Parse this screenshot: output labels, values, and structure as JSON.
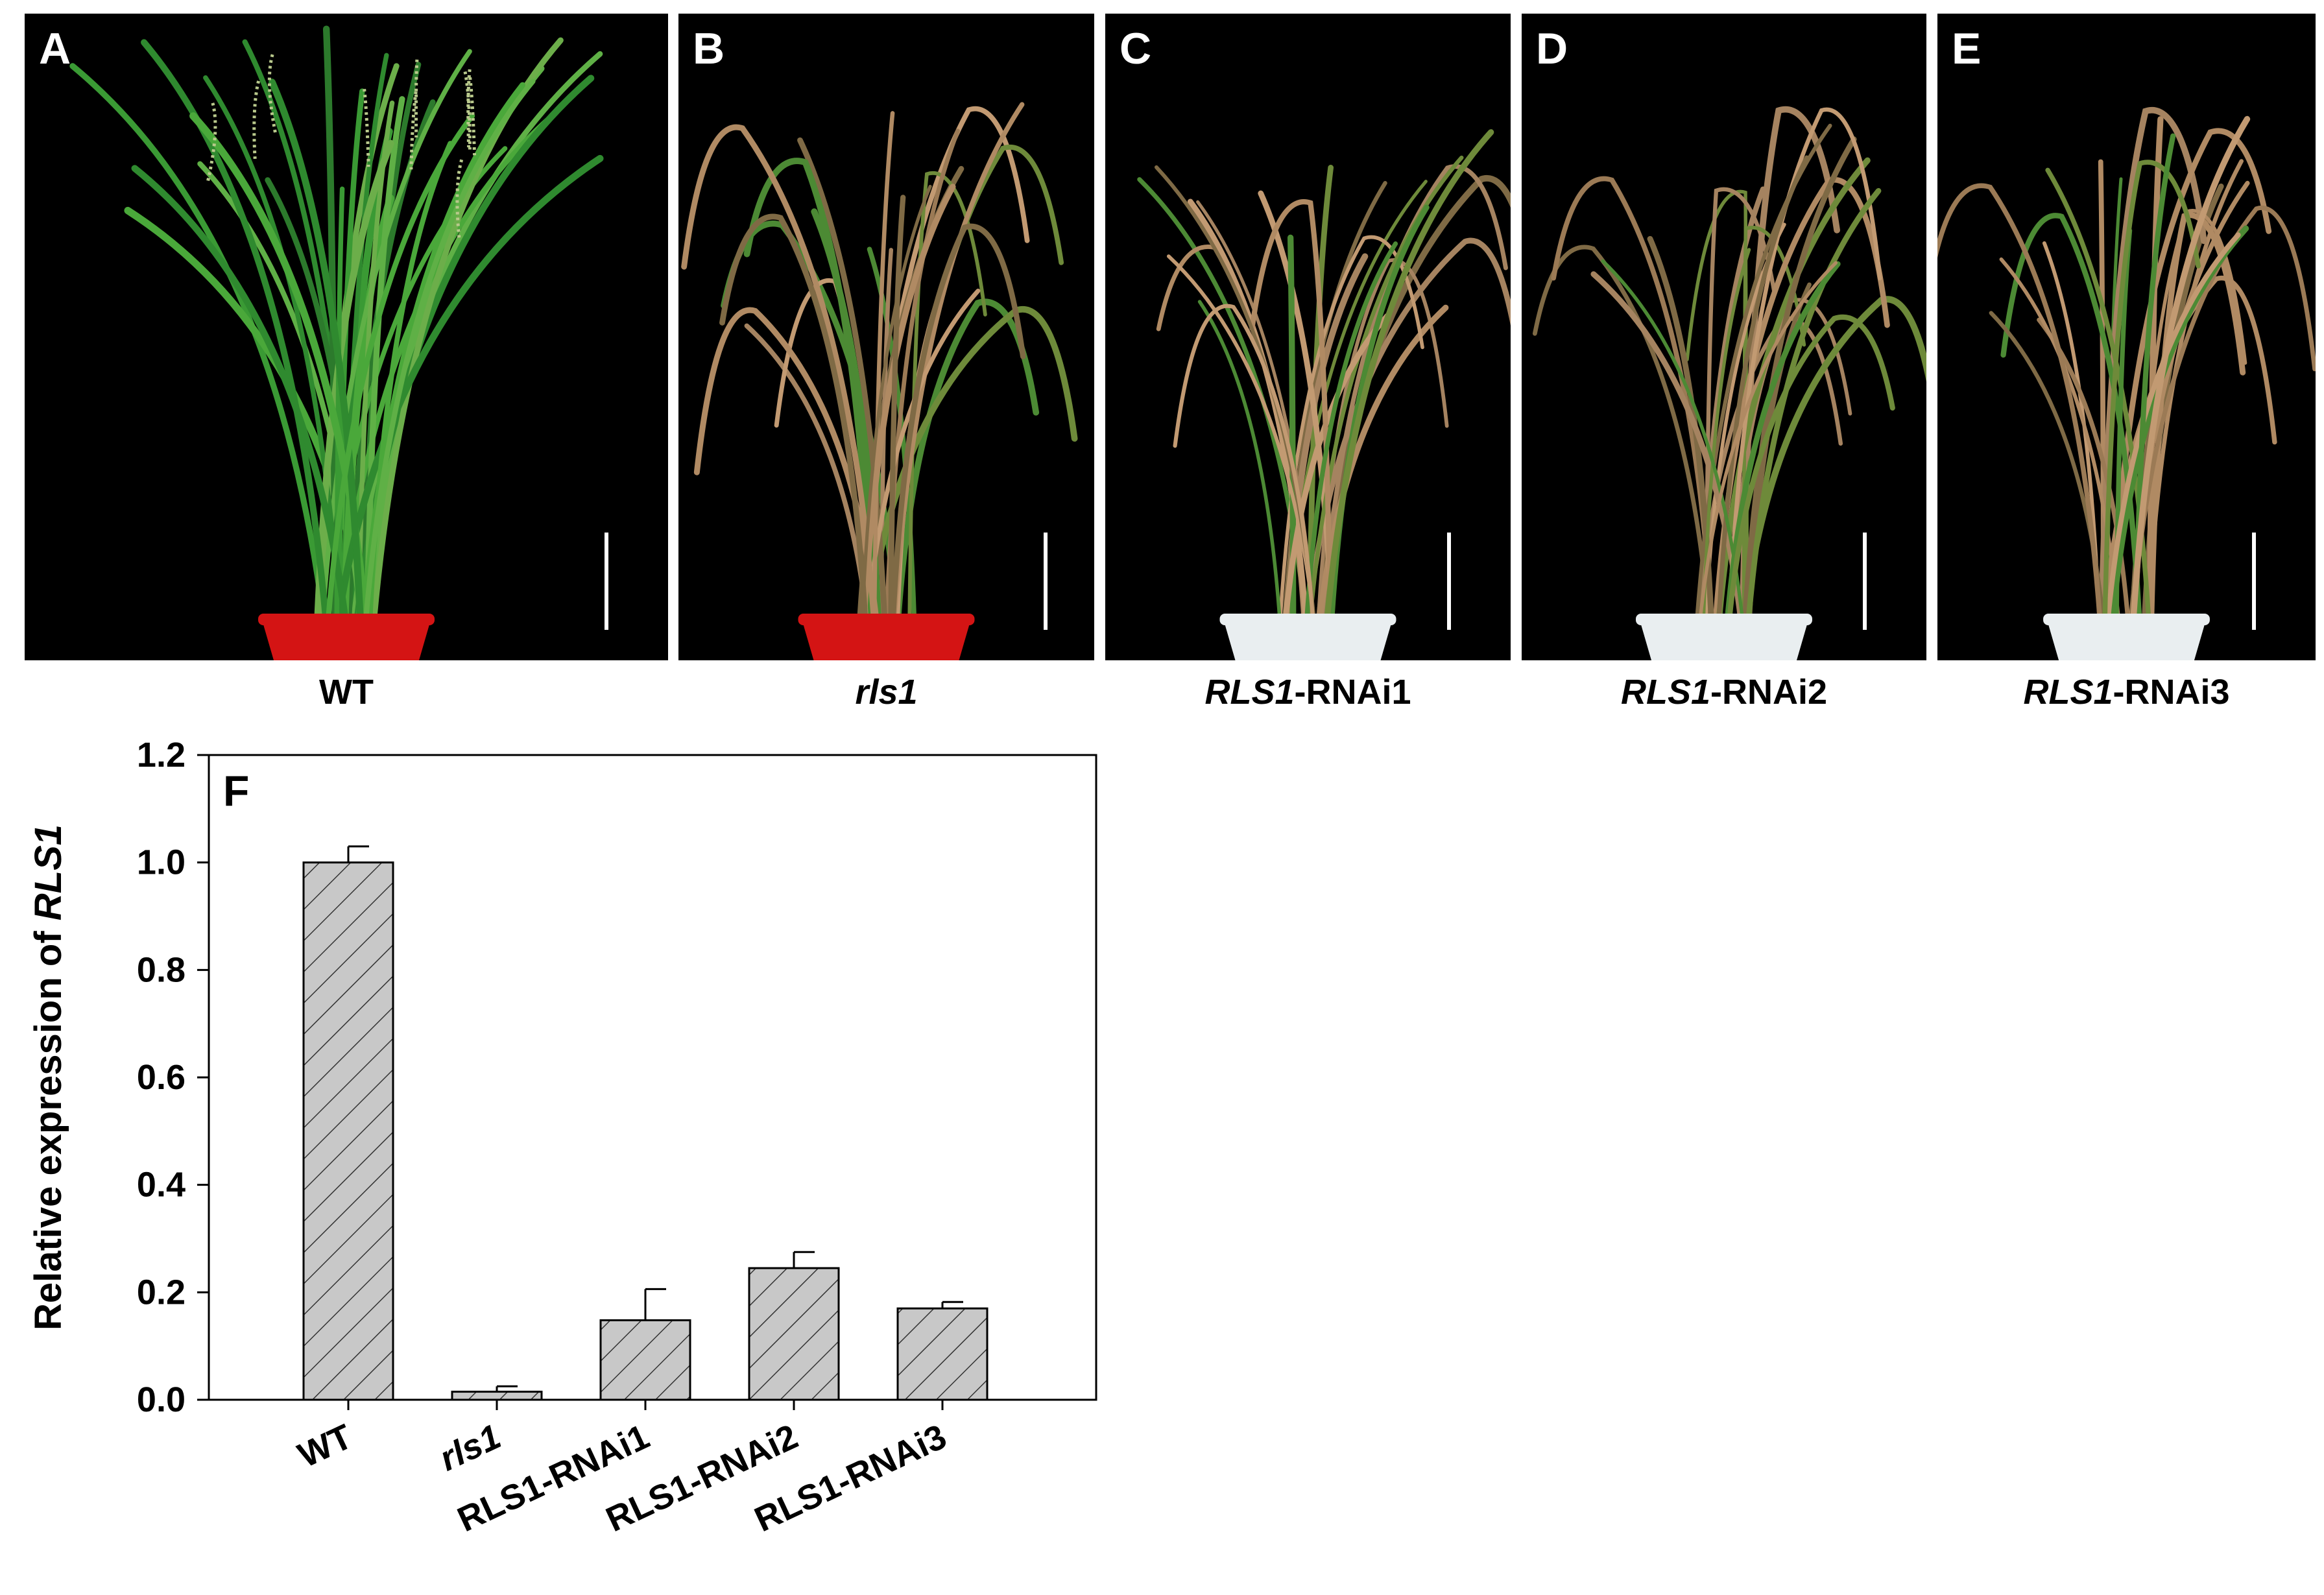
{
  "panels": [
    {
      "letter": "A",
      "caption_italic": "",
      "caption_rest": "WT",
      "pot": "#d41414",
      "plant": "healthy"
    },
    {
      "letter": "B",
      "caption_italic": "rls1",
      "caption_rest": "",
      "pot": "#d41414",
      "plant": "senescent"
    },
    {
      "letter": "C",
      "caption_italic": "RLS1",
      "caption_rest": "-RNAi1",
      "pot": "#e9eef0",
      "plant": "senescent"
    },
    {
      "letter": "D",
      "caption_italic": "RLS1",
      "caption_rest": "-RNAi2",
      "pot": "#e9eef0",
      "plant": "senescent"
    },
    {
      "letter": "E",
      "caption_italic": "RLS1",
      "caption_rest": "-RNAi3",
      "pot": "#e9eef0",
      "plant": "senescent"
    }
  ],
  "chart_data": {
    "type": "bar",
    "panel_letter": "F",
    "categories": [
      "WT",
      "rls1",
      "RLS1-RNAi1",
      "RLS1-RNAi2",
      "RLS1-RNAi3"
    ],
    "values": [
      1.0,
      0.015,
      0.148,
      0.245,
      0.17
    ],
    "errors": [
      0.03,
      0.01,
      0.058,
      0.03,
      0.012
    ],
    "ylabel_prefix": "Relative expression of ",
    "ylabel_italic": "RLS1",
    "xlabel": "",
    "ylim": [
      0,
      1.2
    ],
    "yticks": [
      "0.0",
      "0.2",
      "0.4",
      "0.6",
      "0.8",
      "1.0",
      "1.2"
    ],
    "bar_fill": "#c8c8c8",
    "hatch": "diagonal",
    "grid": false
  }
}
